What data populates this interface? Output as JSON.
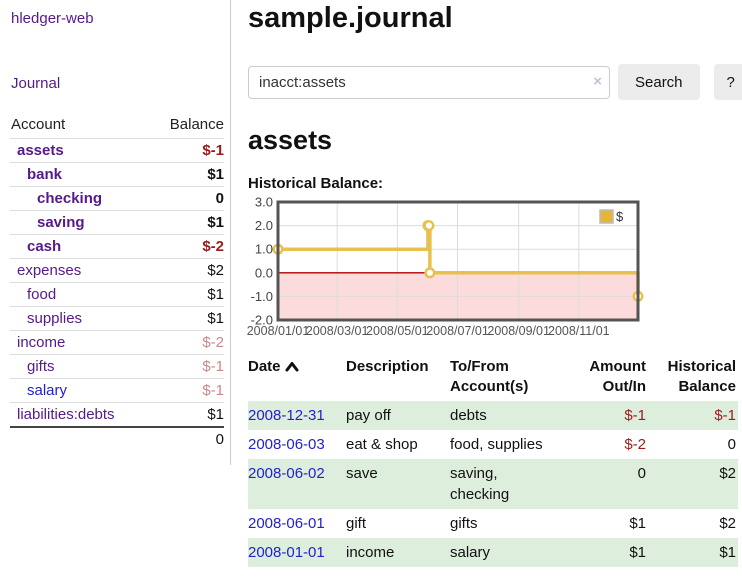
{
  "colors": {
    "purple_link": "#551a8b",
    "blue_link": "#2222cc",
    "negative_strong": "#9d1a1a",
    "negative_weak": "#c98989",
    "row_stripe_green": "#ddeedd",
    "chart_gold": "#e8c14c",
    "legend_gold": "#e5b636",
    "chart_negative_fill": "#fbdbdb",
    "chart_zero_line": "#b00000"
  },
  "sidebar": {
    "title": "hledger-web",
    "nav_journal": "Journal",
    "accounts": {
      "col_account": "Account",
      "col_balance": "Balance",
      "rows": [
        {
          "name": "assets",
          "balance": "$-1",
          "depth": 1,
          "bold": true,
          "name_color": "purple",
          "balance_style": "strong-neg"
        },
        {
          "name": "bank",
          "balance": "$1",
          "depth": 2,
          "bold": true,
          "name_color": "purple",
          "balance_style": "plain"
        },
        {
          "name": "checking",
          "balance": "0",
          "depth": 3,
          "bold": true,
          "name_color": "purple",
          "balance_style": "plain"
        },
        {
          "name": "saving",
          "balance": "$1",
          "depth": 3,
          "bold": true,
          "name_color": "purple",
          "balance_style": "plain"
        },
        {
          "name": "cash",
          "balance": "$-2",
          "depth": 2,
          "bold": true,
          "name_color": "purple",
          "balance_style": "strong-neg"
        },
        {
          "name": "expenses",
          "balance": "$2",
          "depth": 1,
          "bold": false,
          "name_color": "purple",
          "balance_style": "plain"
        },
        {
          "name": "food",
          "balance": "$1",
          "depth": 2,
          "bold": false,
          "name_color": "purple",
          "balance_style": "plain"
        },
        {
          "name": "supplies",
          "balance": "$1",
          "depth": 2,
          "bold": false,
          "name_color": "purple",
          "balance_style": "plain"
        },
        {
          "name": "income",
          "balance": "$-2",
          "depth": 1,
          "bold": false,
          "name_color": "purple",
          "balance_style": "weak-neg"
        },
        {
          "name": "gifts",
          "balance": "$-1",
          "depth": 2,
          "bold": false,
          "name_color": "purple",
          "balance_style": "weak-neg"
        },
        {
          "name": "salary",
          "balance": "$-1",
          "depth": 2,
          "bold": false,
          "name_color": "blue",
          "balance_style": "weak-neg"
        },
        {
          "name": "liabilities:debts",
          "balance": "$1",
          "depth": 1,
          "bold": false,
          "name_color": "purple",
          "balance_style": "plain"
        }
      ],
      "total": "0"
    }
  },
  "main": {
    "title": "sample.journal",
    "search": {
      "value": "inacct:assets",
      "clear_icon": "×",
      "button": "Search",
      "help": "?"
    },
    "account_heading": "assets",
    "chart_label": "Historical Balance:"
  },
  "chart_data": {
    "type": "line",
    "step": "after",
    "title": "Historical Balance",
    "x_domain": [
      "2008-01-01",
      "2008-12-31"
    ],
    "ylim": [
      -2,
      3
    ],
    "yticks": [
      "3.0",
      "2.0",
      "1.0",
      "0.0",
      "-1.0",
      "-2.0"
    ],
    "ytick_values": [
      3,
      2,
      1,
      0,
      -1,
      -2
    ],
    "xticks": [
      {
        "date": "2008-01-01",
        "label": "2008/01/01"
      },
      {
        "date": "2008-03-01",
        "label": "2008/03/01"
      },
      {
        "date": "2008-05-01",
        "label": "2008/05/01"
      },
      {
        "date": "2008-07-01",
        "label": "2008/07/01"
      },
      {
        "date": "2008-09-01",
        "label": "2008/09/01"
      },
      {
        "date": "2008-11-01",
        "label": "2008/11/01"
      }
    ],
    "grid": true,
    "legend": {
      "label": "$",
      "position": "top-right"
    },
    "series": [
      {
        "name": "$",
        "points": [
          {
            "date": "2008-01-01",
            "value": 1
          },
          {
            "date": "2008-06-01",
            "value": 2
          },
          {
            "date": "2008-06-02",
            "value": 2
          },
          {
            "date": "2008-06-03",
            "value": 0
          },
          {
            "date": "2008-12-31",
            "value": -1
          }
        ]
      }
    ]
  },
  "transactions": {
    "col_date": "Date",
    "sort_icon": "chevron-up",
    "col_description": "Description",
    "col_tofrom_line1": "To/From",
    "col_tofrom_line2": "Account(s)",
    "col_amount_line1": "Amount",
    "col_amount_line2": "Out/In",
    "col_balance_line1": "Historical",
    "col_balance_line2": "Balance",
    "rows": [
      {
        "date": "2008-12-31",
        "description": "pay off",
        "accounts": "debts",
        "amount": "$-1",
        "amount_negative": true,
        "balance": "$-1",
        "balance_negative": true
      },
      {
        "date": "2008-06-03",
        "description": "eat & shop",
        "accounts": "food, supplies",
        "amount": "$-2",
        "amount_negative": true,
        "balance": "0",
        "balance_negative": false
      },
      {
        "date": "2008-06-02",
        "description": "save",
        "accounts": "saving, checking",
        "amount": "0",
        "amount_negative": false,
        "balance": "$2",
        "balance_negative": false
      },
      {
        "date": "2008-06-01",
        "description": "gift",
        "accounts": "gifts",
        "amount": "$1",
        "amount_negative": false,
        "balance": "$2",
        "balance_negative": false
      },
      {
        "date": "2008-01-01",
        "description": "income",
        "accounts": "salary",
        "amount": "$1",
        "amount_negative": false,
        "balance": "$1",
        "balance_negative": false
      }
    ]
  }
}
